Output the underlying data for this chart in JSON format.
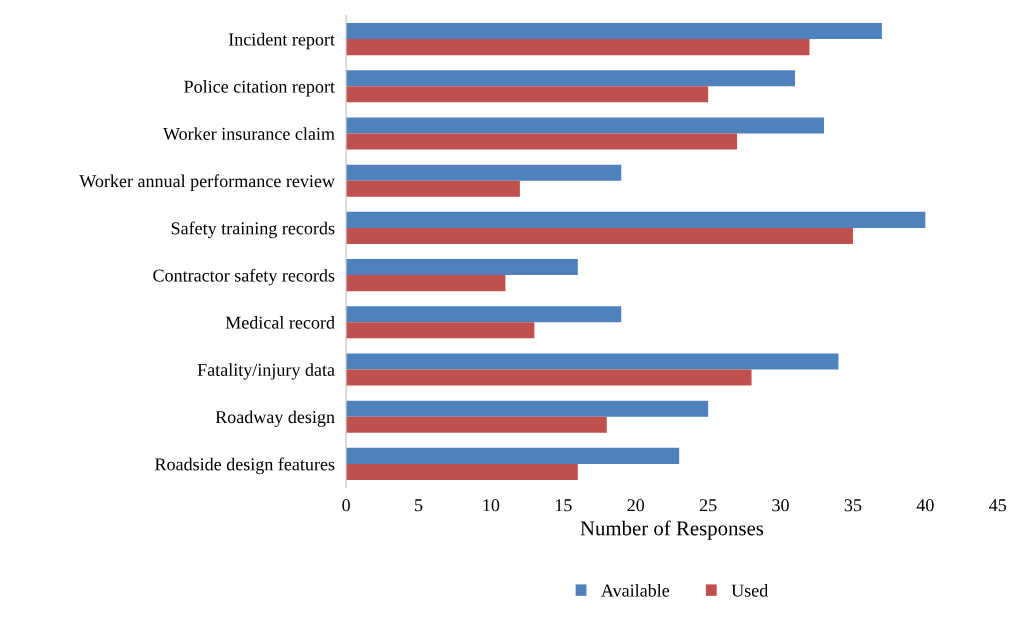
{
  "chart_data": {
    "type": "bar",
    "orientation": "horizontal",
    "xlabel": "Number of Responses",
    "categories": [
      "Incident report",
      "Police citation report",
      "Worker insurance claim",
      "Worker annual performance review",
      "Safety training records",
      "Contractor safety records",
      "Medical record",
      "Fatality/injury data",
      "Roadway design",
      "Roadside design features"
    ],
    "series": [
      {
        "name": "Available",
        "color": "#4f81bd",
        "values": [
          37,
          31,
          33,
          19,
          40,
          16,
          19,
          34,
          25,
          23
        ]
      },
      {
        "name": "Used",
        "color": "#c0504d",
        "values": [
          32,
          25,
          27,
          12,
          35,
          11,
          13,
          28,
          18,
          16
        ]
      }
    ],
    "xlim": [
      0,
      45
    ],
    "xticks": [
      0,
      5,
      10,
      15,
      20,
      25,
      30,
      35,
      40,
      45
    ],
    "grid": false,
    "legend": "bottom"
  }
}
